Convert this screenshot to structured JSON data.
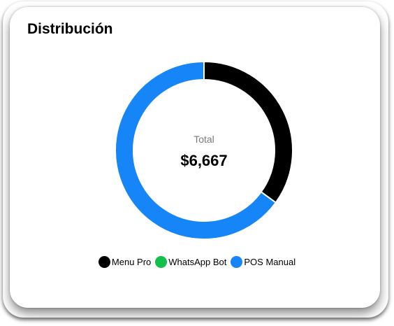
{
  "card": {
    "title": "Distribución"
  },
  "center": {
    "label": "Total",
    "value": "$6,667"
  },
  "chart_data": {
    "type": "pie",
    "title": "Distribución",
    "series": [
      {
        "name": "Menu Pro",
        "value": 2333,
        "color": "#000000"
      },
      {
        "name": "WhatsApp Bot",
        "value": 0,
        "color": "#12c04a"
      },
      {
        "name": "POS Manual",
        "value": 4334,
        "color": "#1685f8"
      }
    ],
    "total": 6667,
    "legend": "bottom"
  }
}
